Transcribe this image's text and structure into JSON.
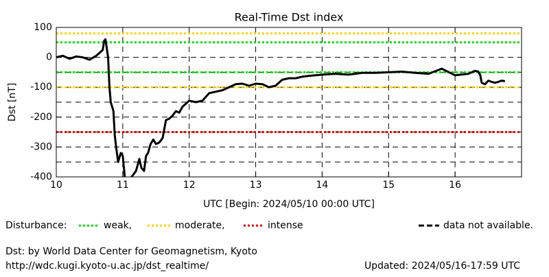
{
  "chart_data": {
    "type": "line",
    "title": "Real-Time Dst index",
    "xlabel": "UTC [Begin: 2024/05/10 00:00 UTC]",
    "ylabel": "Dst [nT]",
    "xlim": [
      10,
      17
    ],
    "xticks": [
      10,
      11,
      12,
      13,
      14,
      15,
      16
    ],
    "ylim": [
      -400,
      100
    ],
    "yticks": [
      100,
      0,
      -100,
      -200,
      -300,
      -400
    ],
    "ygrid": [
      0,
      -50,
      -100,
      -150,
      -200,
      -250,
      -300,
      -350
    ],
    "grid": true,
    "legend_title": "Disturbance:",
    "thresholds": [
      {
        "name": "weak,",
        "color": "#00e000",
        "values": [
          50,
          -50
        ]
      },
      {
        "name": "moderate,",
        "color": "#ffd000",
        "values": [
          80,
          -100
        ]
      },
      {
        "name": "intense",
        "color": "#e00000",
        "values": [
          -250
        ]
      }
    ],
    "missing_label": "data not available.",
    "series": [
      {
        "name": "Dst",
        "color": "#000000",
        "x": [
          10.0,
          10.1,
          10.15,
          10.2,
          10.3,
          10.4,
          10.5,
          10.6,
          10.65,
          10.7,
          10.72,
          10.74,
          10.78,
          10.8,
          10.82,
          10.86,
          10.88,
          10.9,
          10.93,
          10.97,
          11.0,
          11.03,
          11.05,
          11.1,
          11.2,
          11.25,
          11.28,
          11.32,
          11.35,
          11.38,
          11.42,
          11.46,
          11.5,
          11.55,
          11.6,
          11.65,
          11.7,
          11.75,
          11.8,
          11.85,
          11.9,
          11.95,
          12.0,
          12.1,
          12.2,
          12.3,
          12.4,
          12.5,
          12.6,
          12.7,
          12.8,
          12.9,
          13.0,
          13.1,
          13.2,
          13.3,
          13.4,
          13.5,
          13.6,
          13.7,
          13.8,
          13.9,
          14.0,
          14.2,
          14.4,
          14.6,
          14.8,
          15.0,
          15.2,
          15.4,
          15.6,
          15.8,
          16.0,
          16.2,
          16.3,
          16.35,
          16.38,
          16.4,
          16.45,
          16.5,
          16.55,
          16.6,
          16.65,
          16.7,
          16.75
        ],
        "values": [
          0,
          5,
          0,
          -5,
          3,
          0,
          -8,
          5,
          15,
          25,
          55,
          60,
          0,
          -100,
          -150,
          -180,
          -260,
          -300,
          -350,
          -320,
          -330,
          -400,
          -412,
          -410,
          -380,
          -340,
          -370,
          -380,
          -330,
          -320,
          -290,
          -275,
          -290,
          -285,
          -270,
          -210,
          -205,
          -195,
          -180,
          -185,
          -165,
          -155,
          -145,
          -150,
          -145,
          -120,
          -115,
          -110,
          -100,
          -90,
          -88,
          -95,
          -88,
          -90,
          -100,
          -95,
          -75,
          -70,
          -70,
          -65,
          -62,
          -60,
          -58,
          -55,
          -58,
          -52,
          -52,
          -50,
          -48,
          -52,
          -55,
          -38,
          -60,
          -55,
          -45,
          -48,
          -60,
          -85,
          -90,
          -78,
          -82,
          -85,
          -82,
          -78,
          -80
        ]
      }
    ],
    "credit": "Dst: by World Data Center for Geomagnetism, Kyoto",
    "url": "http://wdc.kugi.kyoto-u.ac.jp/dst_realtime/",
    "updated": "Updated: 2024/05/16-17:59 UTC"
  }
}
